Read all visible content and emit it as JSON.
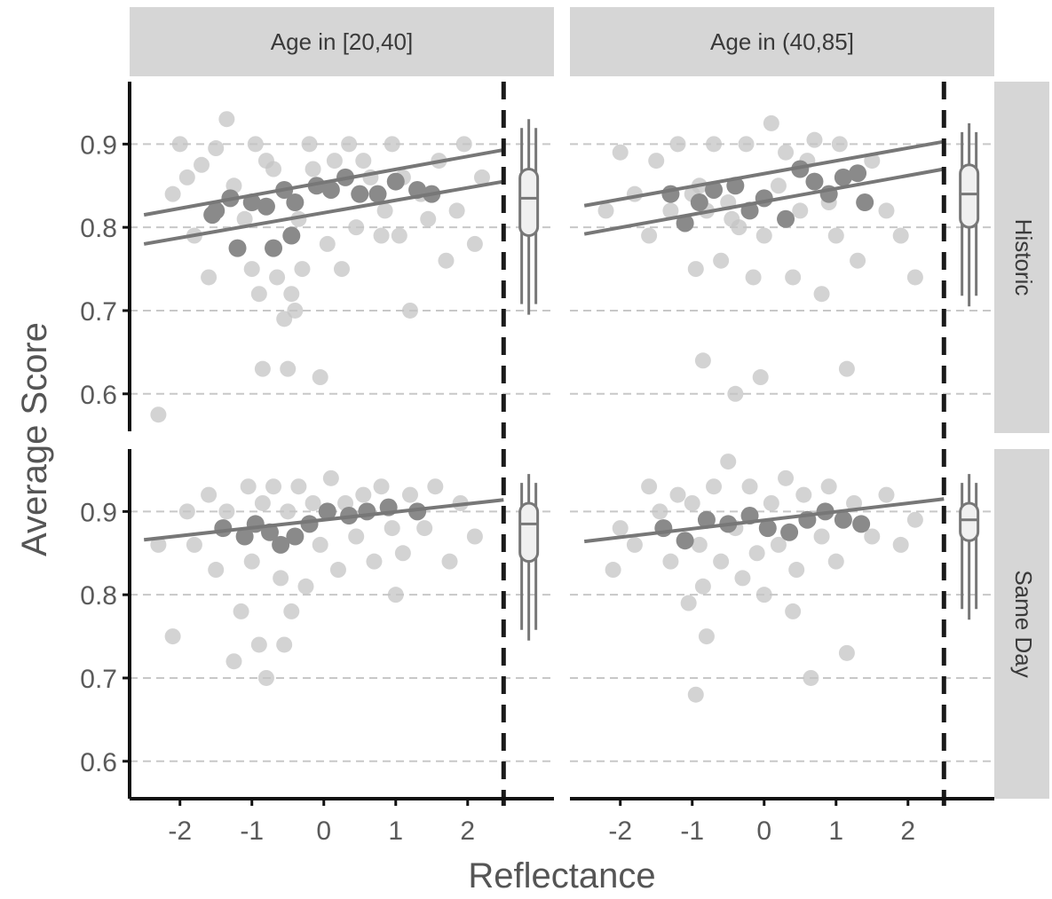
{
  "chart_data": {
    "type": "scatter",
    "title": "",
    "xlabel": "Reflectance",
    "ylabel": "Average Score",
    "xlim": [
      -2.7,
      3.2
    ],
    "ylim": [
      0.555,
      0.975
    ],
    "x_ticks": [
      -2,
      -1,
      0,
      1,
      2
    ],
    "y_ticks": [
      0.6,
      0.7,
      0.8,
      0.9
    ],
    "columns": [
      "Age in [20,40]",
      "Age in (40,85]"
    ],
    "rows": [
      "Historic",
      "Same Day"
    ],
    "reference_line_x": 2.5,
    "grid": true,
    "panels": [
      {
        "column": "Age in [20,40]",
        "row": "Historic",
        "fit_lines": [
          {
            "x": [
              -2.5,
              2.5
            ],
            "y": [
              0.815,
              0.893
            ]
          },
          {
            "x": [
              -2.5,
              2.5
            ],
            "y": [
              0.78,
              0.855
            ]
          }
        ],
        "summary": {
          "min": 0.695,
          "q1": 0.79,
          "median": 0.835,
          "q3": 0.87,
          "max": 0.93
        },
        "points_dark": [
          [
            -1.55,
            0.815
          ],
          [
            -1.3,
            0.835
          ],
          [
            -1.5,
            0.82
          ],
          [
            -1.2,
            0.775
          ],
          [
            -1.0,
            0.83
          ],
          [
            -0.8,
            0.825
          ],
          [
            -0.55,
            0.845
          ],
          [
            -0.7,
            0.775
          ],
          [
            -0.45,
            0.79
          ],
          [
            -0.4,
            0.83
          ],
          [
            -0.1,
            0.85
          ],
          [
            0.1,
            0.845
          ],
          [
            0.3,
            0.86
          ],
          [
            0.5,
            0.84
          ],
          [
            0.75,
            0.84
          ],
          [
            1.0,
            0.855
          ],
          [
            1.3,
            0.845
          ],
          [
            1.5,
            0.84
          ]
        ],
        "points_light": [
          [
            -2.0,
            0.9
          ],
          [
            -1.9,
            0.86
          ],
          [
            -1.7,
            0.875
          ],
          [
            -1.6,
            0.74
          ],
          [
            -1.5,
            0.895
          ],
          [
            -1.35,
            0.93
          ],
          [
            -1.25,
            0.85
          ],
          [
            -1.1,
            0.81
          ],
          [
            -1.0,
            0.75
          ],
          [
            -0.95,
            0.9
          ],
          [
            -0.9,
            0.72
          ],
          [
            -0.85,
            0.63
          ],
          [
            -0.8,
            0.88
          ],
          [
            -0.7,
            0.87
          ],
          [
            -0.65,
            0.74
          ],
          [
            -0.55,
            0.69
          ],
          [
            -0.5,
            0.63
          ],
          [
            -0.45,
            0.72
          ],
          [
            -0.4,
            0.7
          ],
          [
            -0.35,
            0.81
          ],
          [
            -0.3,
            0.75
          ],
          [
            -0.2,
            0.9
          ],
          [
            -0.15,
            0.87
          ],
          [
            -0.05,
            0.62
          ],
          [
            0.05,
            0.78
          ],
          [
            0.15,
            0.88
          ],
          [
            0.25,
            0.75
          ],
          [
            0.35,
            0.9
          ],
          [
            0.45,
            0.8
          ],
          [
            0.55,
            0.88
          ],
          [
            0.65,
            0.86
          ],
          [
            0.8,
            0.79
          ],
          [
            0.85,
            0.82
          ],
          [
            0.95,
            0.9
          ],
          [
            1.05,
            0.79
          ],
          [
            1.1,
            0.86
          ],
          [
            1.2,
            0.7
          ],
          [
            1.35,
            0.84
          ],
          [
            1.45,
            0.81
          ],
          [
            1.6,
            0.88
          ],
          [
            1.7,
            0.76
          ],
          [
            1.85,
            0.82
          ],
          [
            1.95,
            0.9
          ],
          [
            2.1,
            0.78
          ],
          [
            2.2,
            0.86
          ],
          [
            -2.3,
            0.575
          ],
          [
            -2.1,
            0.84
          ],
          [
            -1.8,
            0.79
          ]
        ]
      },
      {
        "column": "Age in (40,85]",
        "row": "Historic",
        "fit_lines": [
          {
            "x": [
              -2.5,
              2.5
            ],
            "y": [
              0.826,
              0.903
            ]
          },
          {
            "x": [
              -2.5,
              2.5
            ],
            "y": [
              0.792,
              0.87
            ]
          }
        ],
        "summary": {
          "min": 0.705,
          "q1": 0.8,
          "median": 0.84,
          "q3": 0.875,
          "max": 0.925
        },
        "points_dark": [
          [
            -1.3,
            0.84
          ],
          [
            -1.1,
            0.805
          ],
          [
            -0.9,
            0.83
          ],
          [
            -0.7,
            0.845
          ],
          [
            -0.4,
            0.85
          ],
          [
            -0.2,
            0.82
          ],
          [
            0.0,
            0.835
          ],
          [
            0.3,
            0.81
          ],
          [
            0.5,
            0.87
          ],
          [
            0.7,
            0.855
          ],
          [
            0.9,
            0.84
          ],
          [
            1.1,
            0.86
          ],
          [
            1.3,
            0.865
          ],
          [
            1.4,
            0.83
          ]
        ],
        "points_light": [
          [
            -2.0,
            0.89
          ],
          [
            -1.8,
            0.84
          ],
          [
            -1.6,
            0.79
          ],
          [
            -1.5,
            0.88
          ],
          [
            -1.3,
            0.82
          ],
          [
            -1.2,
            0.9
          ],
          [
            -1.0,
            0.84
          ],
          [
            -0.95,
            0.75
          ],
          [
            -0.9,
            0.85
          ],
          [
            -0.85,
            0.64
          ],
          [
            -0.8,
            0.82
          ],
          [
            -0.7,
            0.9
          ],
          [
            -0.6,
            0.76
          ],
          [
            -0.5,
            0.83
          ],
          [
            -0.4,
            0.6
          ],
          [
            -0.35,
            0.8
          ],
          [
            -0.25,
            0.9
          ],
          [
            -0.15,
            0.74
          ],
          [
            -0.05,
            0.62
          ],
          [
            0.0,
            0.79
          ],
          [
            0.1,
            0.925
          ],
          [
            0.2,
            0.85
          ],
          [
            0.3,
            0.89
          ],
          [
            0.4,
            0.74
          ],
          [
            0.5,
            0.82
          ],
          [
            0.6,
            0.88
          ],
          [
            0.7,
            0.905
          ],
          [
            0.8,
            0.72
          ],
          [
            0.9,
            0.83
          ],
          [
            1.0,
            0.79
          ],
          [
            1.05,
            0.9
          ],
          [
            1.15,
            0.63
          ],
          [
            1.3,
            0.76
          ],
          [
            1.5,
            0.88
          ],
          [
            1.7,
            0.82
          ],
          [
            1.9,
            0.79
          ],
          [
            2.1,
            0.74
          ],
          [
            -2.2,
            0.82
          ],
          [
            -0.45,
            0.81
          ]
        ]
      },
      {
        "column": "Age in [20,40]",
        "row": "Same Day",
        "fit_lines": [
          {
            "x": [
              -2.5,
              2.5
            ],
            "y": [
              0.866,
              0.914
            ]
          }
        ],
        "summary": {
          "min": 0.745,
          "q1": 0.84,
          "median": 0.885,
          "q3": 0.91,
          "max": 0.945
        },
        "points_dark": [
          [
            -1.4,
            0.88
          ],
          [
            -1.1,
            0.87
          ],
          [
            -0.95,
            0.885
          ],
          [
            -0.75,
            0.875
          ],
          [
            -0.6,
            0.86
          ],
          [
            -0.4,
            0.87
          ],
          [
            -0.2,
            0.885
          ],
          [
            0.05,
            0.9
          ],
          [
            0.35,
            0.895
          ],
          [
            0.6,
            0.9
          ],
          [
            0.9,
            0.905
          ],
          [
            1.3,
            0.9
          ]
        ],
        "points_light": [
          [
            -2.1,
            0.75
          ],
          [
            -1.9,
            0.9
          ],
          [
            -1.8,
            0.86
          ],
          [
            -1.6,
            0.92
          ],
          [
            -1.5,
            0.83
          ],
          [
            -1.35,
            0.9
          ],
          [
            -1.25,
            0.72
          ],
          [
            -1.15,
            0.78
          ],
          [
            -1.05,
            0.93
          ],
          [
            -1.0,
            0.84
          ],
          [
            -0.9,
            0.74
          ],
          [
            -0.85,
            0.91
          ],
          [
            -0.8,
            0.7
          ],
          [
            -0.7,
            0.93
          ],
          [
            -0.6,
            0.82
          ],
          [
            -0.55,
            0.74
          ],
          [
            -0.5,
            0.9
          ],
          [
            -0.45,
            0.78
          ],
          [
            -0.35,
            0.93
          ],
          [
            -0.25,
            0.81
          ],
          [
            -0.15,
            0.91
          ],
          [
            -0.05,
            0.86
          ],
          [
            0.1,
            0.94
          ],
          [
            0.2,
            0.83
          ],
          [
            0.3,
            0.91
          ],
          [
            0.45,
            0.87
          ],
          [
            0.55,
            0.92
          ],
          [
            0.7,
            0.84
          ],
          [
            0.8,
            0.93
          ],
          [
            0.95,
            0.88
          ],
          [
            1.1,
            0.85
          ],
          [
            1.2,
            0.92
          ],
          [
            1.4,
            0.88
          ],
          [
            1.55,
            0.93
          ],
          [
            1.75,
            0.84
          ],
          [
            1.9,
            0.91
          ],
          [
            2.1,
            0.87
          ],
          [
            -2.3,
            0.86
          ],
          [
            1.0,
            0.8
          ]
        ]
      },
      {
        "column": "Age in (40,85]",
        "row": "Same Day",
        "fit_lines": [
          {
            "x": [
              -2.5,
              2.5
            ],
            "y": [
              0.864,
              0.915
            ]
          }
        ],
        "summary": {
          "min": 0.77,
          "q1": 0.865,
          "median": 0.89,
          "q3": 0.91,
          "max": 0.945
        },
        "points_dark": [
          [
            -1.4,
            0.88
          ],
          [
            -1.1,
            0.865
          ],
          [
            -0.8,
            0.89
          ],
          [
            -0.5,
            0.885
          ],
          [
            -0.2,
            0.895
          ],
          [
            0.05,
            0.88
          ],
          [
            0.35,
            0.875
          ],
          [
            0.6,
            0.89
          ],
          [
            0.85,
            0.9
          ],
          [
            1.1,
            0.89
          ],
          [
            1.35,
            0.885
          ]
        ],
        "points_light": [
          [
            -2.0,
            0.88
          ],
          [
            -1.8,
            0.86
          ],
          [
            -1.6,
            0.93
          ],
          [
            -1.45,
            0.9
          ],
          [
            -1.3,
            0.84
          ],
          [
            -1.2,
            0.92
          ],
          [
            -1.05,
            0.79
          ],
          [
            -1.0,
            0.91
          ],
          [
            -0.95,
            0.68
          ],
          [
            -0.9,
            0.86
          ],
          [
            -0.85,
            0.81
          ],
          [
            -0.8,
            0.75
          ],
          [
            -0.7,
            0.93
          ],
          [
            -0.6,
            0.84
          ],
          [
            -0.5,
            0.96
          ],
          [
            -0.4,
            0.88
          ],
          [
            -0.3,
            0.82
          ],
          [
            -0.2,
            0.93
          ],
          [
            -0.1,
            0.85
          ],
          [
            0.0,
            0.8
          ],
          [
            0.1,
            0.91
          ],
          [
            0.2,
            0.86
          ],
          [
            0.3,
            0.94
          ],
          [
            0.45,
            0.83
          ],
          [
            0.55,
            0.92
          ],
          [
            0.65,
            0.7
          ],
          [
            0.8,
            0.87
          ],
          [
            0.9,
            0.93
          ],
          [
            1.0,
            0.84
          ],
          [
            1.15,
            0.73
          ],
          [
            1.25,
            0.91
          ],
          [
            1.5,
            0.87
          ],
          [
            1.7,
            0.92
          ],
          [
            1.9,
            0.86
          ],
          [
            2.1,
            0.89
          ],
          [
            -2.1,
            0.83
          ],
          [
            0.4,
            0.78
          ]
        ]
      }
    ]
  }
}
